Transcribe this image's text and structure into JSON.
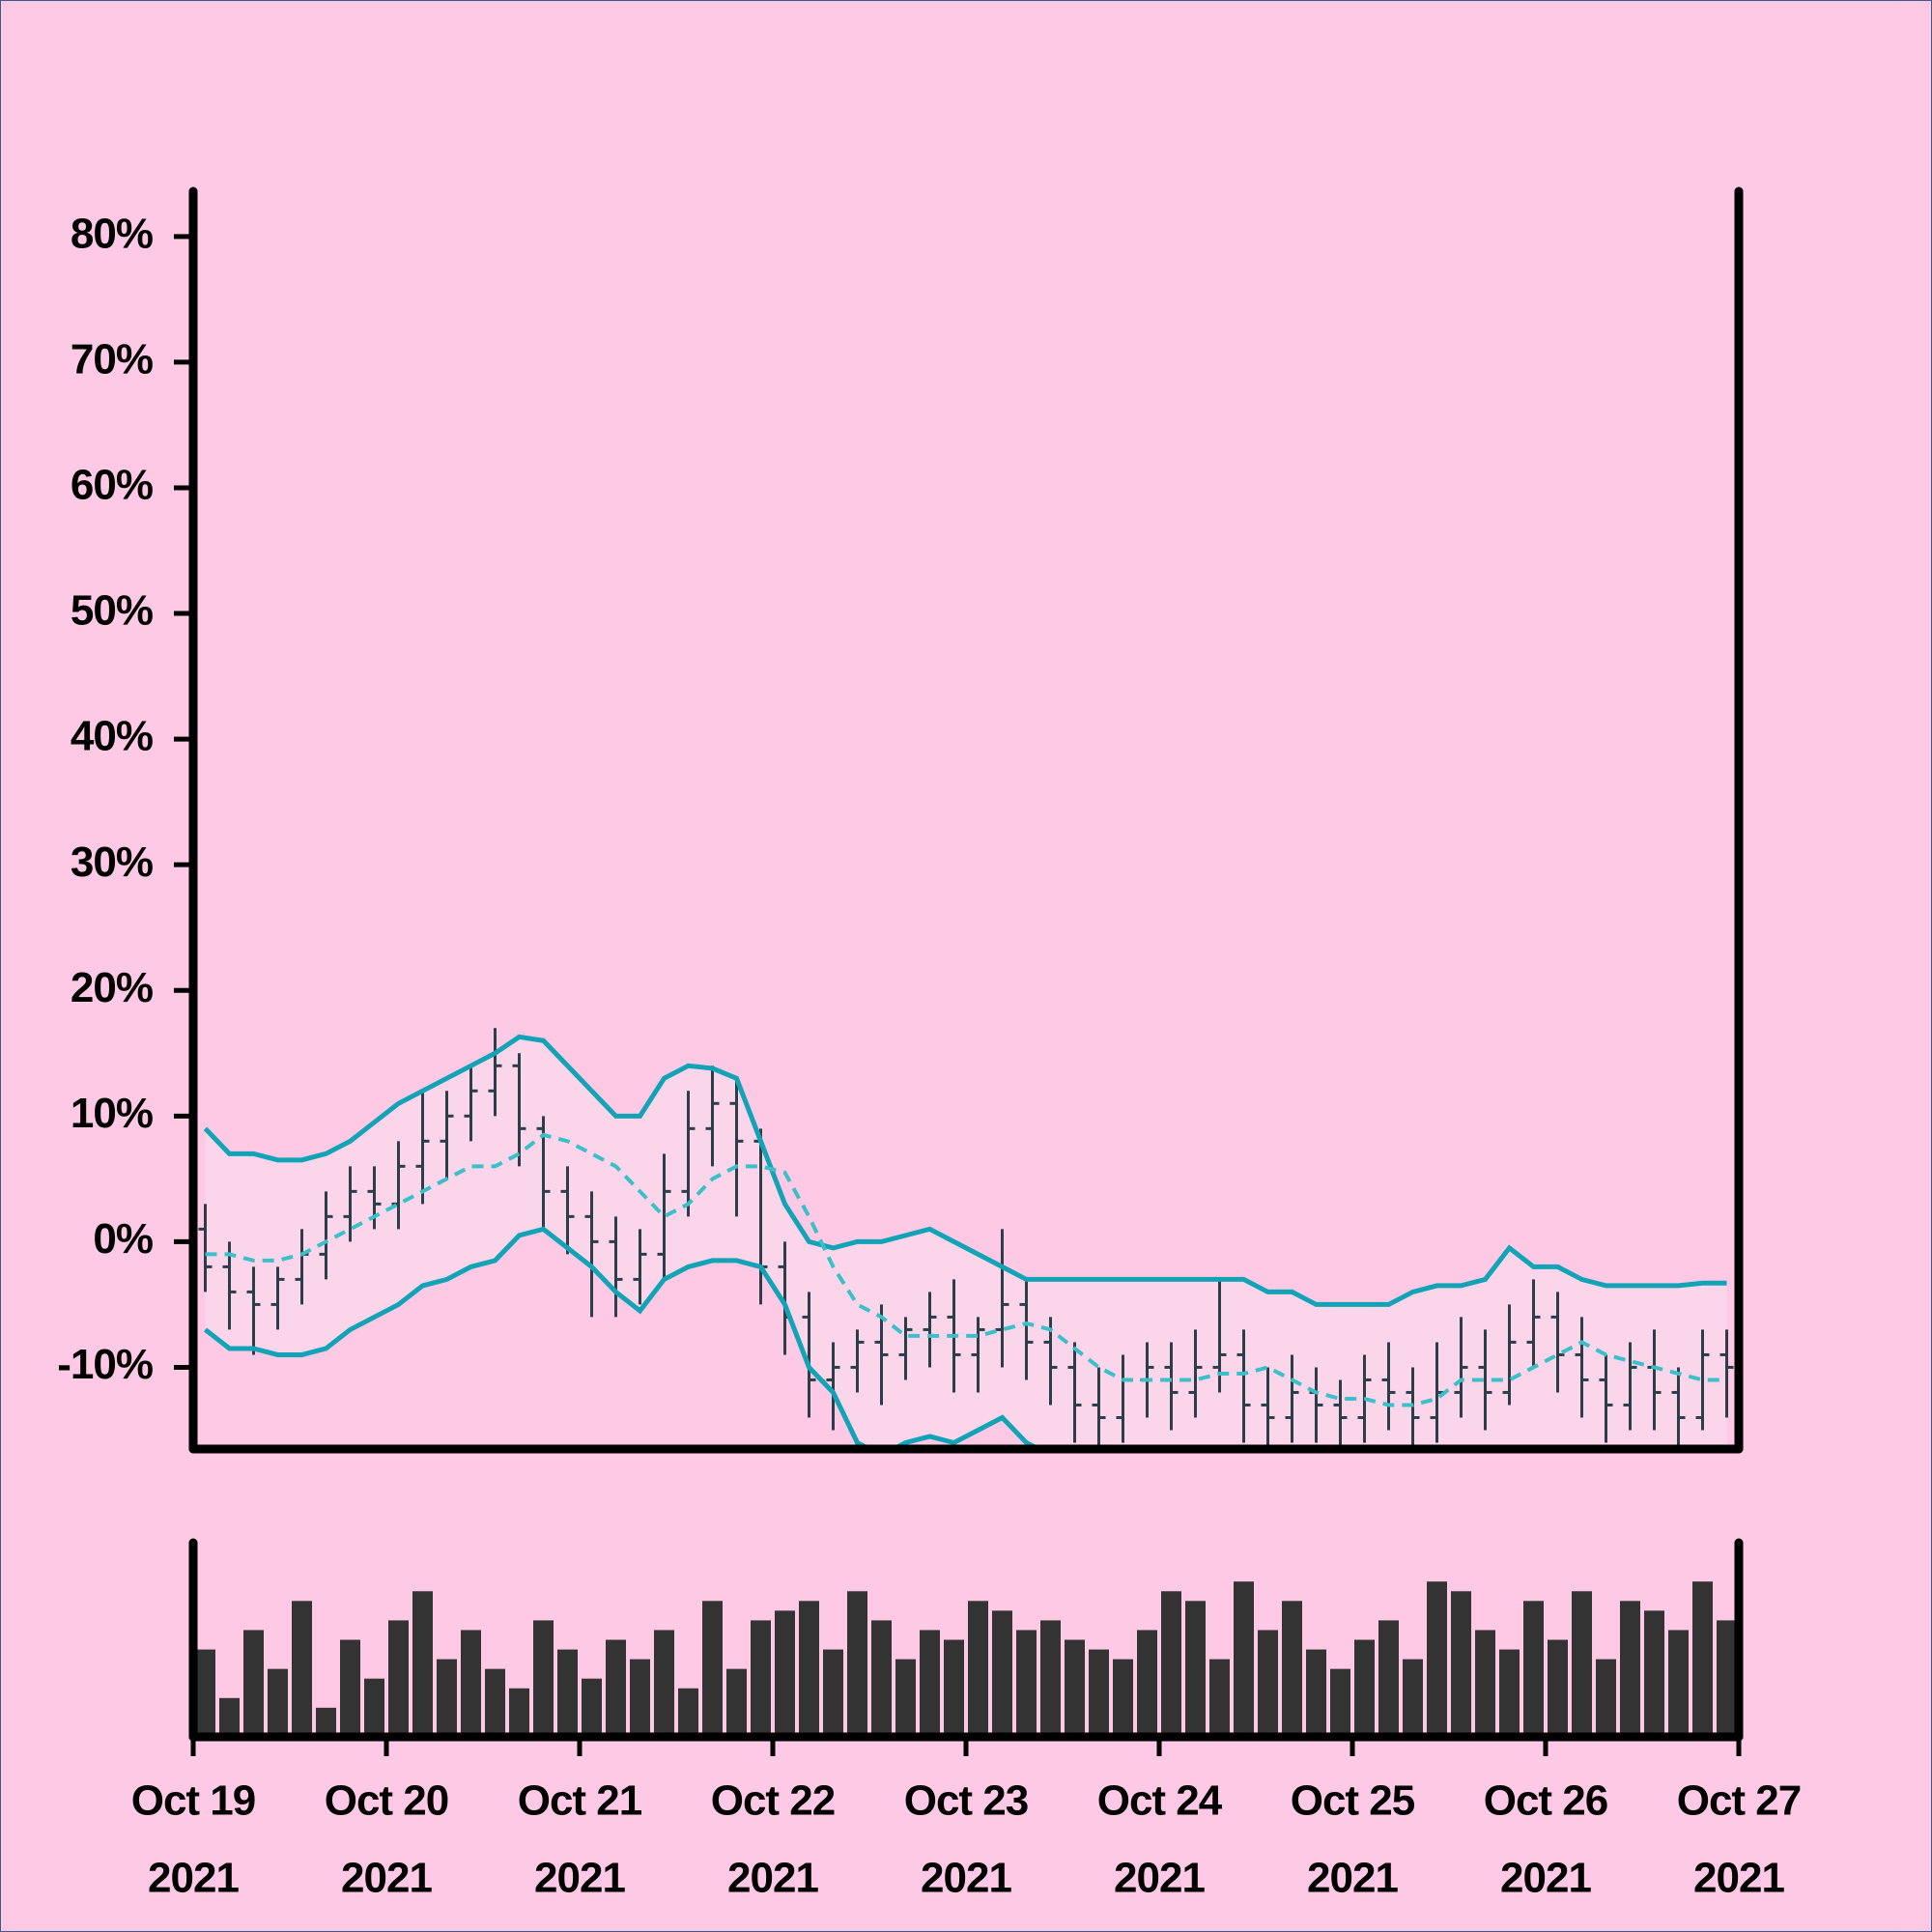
{
  "chart_data": {
    "type": "ohlc",
    "x": [
      "2021-10-19 01:30",
      "2021-10-19 04:30",
      "2021-10-19 07:30",
      "2021-10-19 10:30",
      "2021-10-19 13:30",
      "2021-10-19 16:30",
      "2021-10-19 19:30",
      "2021-10-19 22:30",
      "2021-10-20 01:30",
      "2021-10-20 04:30",
      "2021-10-20 07:30",
      "2021-10-20 10:30",
      "2021-10-20 13:30",
      "2021-10-20 16:30",
      "2021-10-20 19:30",
      "2021-10-20 22:30",
      "2021-10-21 01:30",
      "2021-10-21 04:30",
      "2021-10-21 07:30",
      "2021-10-21 10:30",
      "2021-10-21 13:30",
      "2021-10-21 16:30",
      "2021-10-21 19:30",
      "2021-10-21 22:30",
      "2021-10-22 01:30",
      "2021-10-22 04:30",
      "2021-10-22 07:30",
      "2021-10-22 10:30",
      "2021-10-22 13:30",
      "2021-10-22 16:30",
      "2021-10-22 19:30",
      "2021-10-22 22:30",
      "2021-10-23 01:30",
      "2021-10-23 04:30",
      "2021-10-23 07:30",
      "2021-10-23 10:30",
      "2021-10-23 13:30",
      "2021-10-23 16:30",
      "2021-10-23 19:30",
      "2021-10-23 22:30",
      "2021-10-24 01:30",
      "2021-10-24 04:30",
      "2021-10-24 07:30",
      "2021-10-24 10:30",
      "2021-10-24 13:30",
      "2021-10-24 16:30",
      "2021-10-24 19:30",
      "2021-10-24 22:30",
      "2021-10-25 01:30",
      "2021-10-25 04:30",
      "2021-10-25 07:30",
      "2021-10-25 10:30",
      "2021-10-25 13:30",
      "2021-10-25 16:30",
      "2021-10-25 19:30",
      "2021-10-25 22:30",
      "2021-10-26 01:30",
      "2021-10-26 04:30",
      "2021-10-26 07:30",
      "2021-10-26 10:30",
      "2021-10-26 13:30",
      "2021-10-26 16:30",
      "2021-10-26 19:30",
      "2021-10-26 22:30"
    ],
    "open": [
      1,
      -2,
      -4,
      -5,
      -3,
      -1,
      2,
      4,
      3,
      6,
      8,
      10,
      12,
      14,
      9,
      4,
      2,
      0,
      -3,
      -1,
      4,
      9,
      11,
      8,
      -2,
      -6,
      -11,
      -10,
      -8,
      -9,
      -7,
      -6,
      -9,
      -7,
      -5,
      -8,
      -10,
      -13,
      -14,
      -11,
      -10,
      -12,
      -10,
      -9,
      -13,
      -14,
      -12,
      -13,
      -14,
      -11,
      -12,
      -14,
      -12,
      -10,
      -12,
      -8,
      -6,
      -9,
      -11,
      -13,
      -10,
      -12,
      -14,
      -9
    ],
    "high": [
      3,
      0,
      -2,
      -2,
      1,
      4,
      6,
      6,
      8,
      12,
      12,
      14,
      17,
      15,
      10,
      6,
      4,
      2,
      1,
      7,
      12,
      14,
      13,
      9,
      0,
      -4,
      -8,
      -7,
      -5,
      -6,
      -4,
      -3,
      -6,
      1,
      -3,
      -6,
      -8,
      -10,
      -9,
      -8,
      -8,
      -7,
      -3,
      -7,
      -10,
      -9,
      -10,
      -11,
      -9,
      -8,
      -10,
      -8,
      -6,
      -7,
      -5,
      -3,
      -4,
      -6,
      -9,
      -8,
      -7,
      -10,
      -7,
      -7
    ],
    "low": [
      -4,
      -7,
      -9,
      -7,
      -5,
      -3,
      0,
      1,
      1,
      3,
      5,
      8,
      10,
      6,
      1,
      -1,
      -6,
      -6,
      -5,
      -3,
      2,
      6,
      2,
      -5,
      -9,
      -14,
      -15,
      -12,
      -13,
      -11,
      -10,
      -12,
      -12,
      -10,
      -11,
      -13,
      -16,
      -17,
      -16,
      -14,
      -15,
      -14,
      -12,
      -16,
      -17,
      -16,
      -16,
      -17,
      -16,
      -15,
      -17,
      -16,
      -14,
      -15,
      -13,
      -10,
      -12,
      -14,
      -16,
      -15,
      -15,
      -17,
      -15,
      -14
    ],
    "close": [
      -2,
      -4,
      -5,
      -3,
      -1,
      2,
      4,
      3,
      6,
      8,
      10,
      12,
      14,
      9,
      4,
      2,
      0,
      -3,
      -1,
      4,
      9,
      11,
      8,
      -2,
      -6,
      -11,
      -10,
      -8,
      -9,
      -7,
      -6,
      -9,
      -7,
      -5,
      -8,
      -10,
      -13,
      -14,
      -11,
      -10,
      -12,
      -10,
      -9,
      -13,
      -14,
      -12,
      -13,
      -14,
      -11,
      -12,
      -14,
      -12,
      -10,
      -12,
      -8,
      -6,
      -9,
      -11,
      -13,
      -10,
      -12,
      -14,
      -9,
      -10
    ],
    "bar_color": "#2c3e4a",
    "bands": {
      "color": "#12a4b6",
      "middle_color": "#3bbfc9",
      "fill": "#fbd6ea",
      "upper": [
        9,
        7,
        7,
        6.5,
        6.5,
        7,
        8,
        9.5,
        11,
        12,
        13,
        14,
        15,
        16.3,
        16,
        14,
        12,
        10,
        10,
        13,
        14,
        13.8,
        13,
        8,
        3,
        0,
        -0.5,
        0,
        0,
        0.5,
        1,
        0,
        -1,
        -2,
        -3,
        -3,
        -3,
        -3,
        -3,
        -3,
        -3,
        -3,
        -3,
        -3,
        -4,
        -4,
        -5,
        -5,
        -5,
        -5,
        -4,
        -3.5,
        -3.5,
        -3,
        -0.5,
        -2,
        -2,
        -3,
        -3.5,
        -3.5,
        -3.5,
        -3.5,
        -3.3,
        -3.3
      ],
      "middle": [
        -1,
        -1,
        -1.5,
        -1.5,
        -1,
        0,
        1,
        2,
        3,
        4,
        5,
        6,
        6,
        7,
        8.5,
        8,
        7,
        6,
        4,
        2,
        3,
        5,
        6,
        6,
        5.5,
        2,
        -2,
        -5,
        -6,
        -7.5,
        -7.5,
        -7.5,
        -7.5,
        -7,
        -6.5,
        -7,
        -8.5,
        -10,
        -11,
        -11,
        -11,
        -11,
        -10.5,
        -10.5,
        -10,
        -11,
        -12,
        -12.5,
        -12.5,
        -13,
        -13,
        -12.5,
        -11,
        -11,
        -11,
        -10,
        -9,
        -8,
        -9,
        -9.5,
        -10,
        -10.5,
        -11,
        -11
      ],
      "lower": [
        -7,
        -8.5,
        -8.5,
        -9,
        -9,
        -8.5,
        -7,
        -6,
        -5,
        -3.5,
        -3,
        -2,
        -1.5,
        0.5,
        1,
        -0.5,
        -2,
        -4,
        -5.5,
        -3,
        -2,
        -1.5,
        -1.5,
        -2,
        -5,
        -10,
        -12,
        -16,
        -17,
        -16,
        -15.5,
        -16,
        -15,
        -14,
        -16,
        -17,
        -18,
        -18,
        -18,
        -18,
        -18,
        -18,
        -18,
        -18,
        -18,
        -18,
        -19,
        -19,
        -19,
        -19,
        -19,
        -18,
        -18,
        -18,
        -17,
        -17,
        -17,
        -17,
        -17,
        -18,
        -18,
        -18,
        -19,
        -19
      ]
    },
    "volume": {
      "color": "#333333",
      "ylim": [
        0,
        100
      ],
      "values": [
        45,
        20,
        55,
        35,
        70,
        15,
        50,
        30,
        60,
        75,
        40,
        55,
        35,
        25,
        60,
        45,
        30,
        50,
        40,
        55,
        25,
        70,
        35,
        60,
        65,
        70,
        45,
        75,
        60,
        40,
        55,
        50,
        70,
        65,
        55,
        60,
        50,
        45,
        40,
        55,
        75,
        70,
        40,
        80,
        55,
        70,
        45,
        35,
        50,
        60,
        40,
        80,
        75,
        55,
        45,
        70,
        50,
        75,
        40,
        70,
        65,
        55,
        80,
        60
      ]
    },
    "ylim": [
      -16.5,
      83.6
    ],
    "yticks": [
      {
        "value": -10,
        "label": "-10%"
      },
      {
        "value": 0,
        "label": "0%"
      },
      {
        "value": 10,
        "label": "10%"
      },
      {
        "value": 20,
        "label": "20%"
      },
      {
        "value": 30,
        "label": "30%"
      },
      {
        "value": 40,
        "label": "40%"
      },
      {
        "value": 50,
        "label": "50%"
      },
      {
        "value": 60,
        "label": "60%"
      },
      {
        "value": 70,
        "label": "70%"
      },
      {
        "value": 80,
        "label": "80%"
      }
    ],
    "xlim": [
      "2021-10-19",
      "2021-10-27"
    ],
    "xticks": [
      {
        "value": "2021-10-19",
        "label": [
          "Oct 19",
          "2021"
        ]
      },
      {
        "value": "2021-10-20",
        "label": [
          "Oct 20",
          "2021"
        ]
      },
      {
        "value": "2021-10-21",
        "label": [
          "Oct 21",
          "2021"
        ]
      },
      {
        "value": "2021-10-22",
        "label": [
          "Oct 22",
          "2021"
        ]
      },
      {
        "value": "2021-10-23",
        "label": [
          "Oct 23",
          "2021"
        ]
      },
      {
        "value": "2021-10-24",
        "label": [
          "Oct 24",
          "2021"
        ]
      },
      {
        "value": "2021-10-25",
        "label": [
          "Oct 25",
          "2021"
        ]
      },
      {
        "value": "2021-10-26",
        "label": [
          "Oct 26",
          "2021"
        ]
      },
      {
        "value": "2021-10-27",
        "label": [
          "Oct 27",
          "2021"
        ]
      }
    ]
  }
}
